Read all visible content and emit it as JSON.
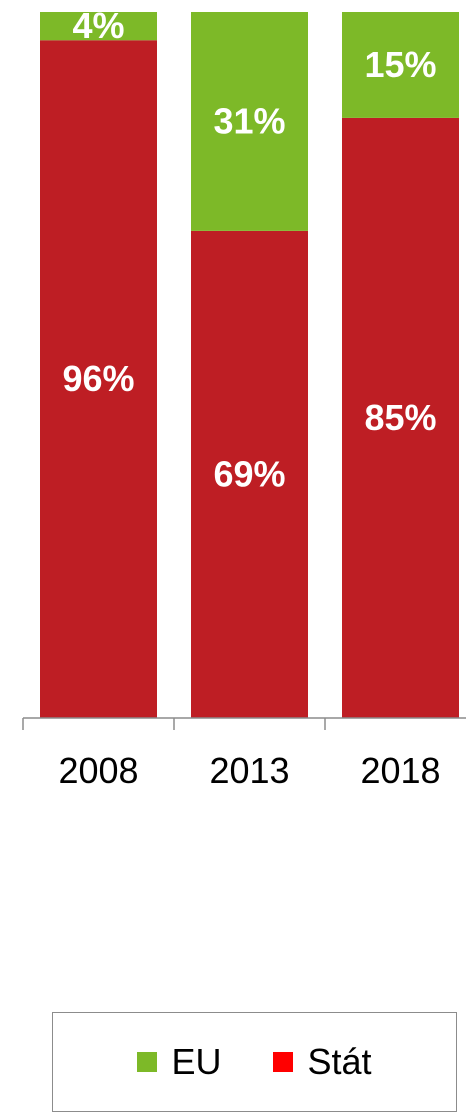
{
  "chart_data": {
    "type": "bar",
    "stacked": true,
    "categories": [
      "2008",
      "2013",
      "2018"
    ],
    "series": [
      {
        "name": "Stát",
        "values": [
          96,
          69,
          85
        ],
        "labels": [
          "96%",
          "69%",
          "85%"
        ],
        "color": "#be1e24"
      },
      {
        "name": "EU",
        "values": [
          4,
          31,
          15
        ],
        "labels": [
          "4%",
          "31%",
          "15%"
        ],
        "color": "#7db928"
      }
    ],
    "ylim": [
      0,
      100
    ],
    "grid": false,
    "legend_placement": "bottom",
    "legend_swatch_colors": {
      "EU": "#7db928",
      "Stát": "#ff0000"
    }
  }
}
